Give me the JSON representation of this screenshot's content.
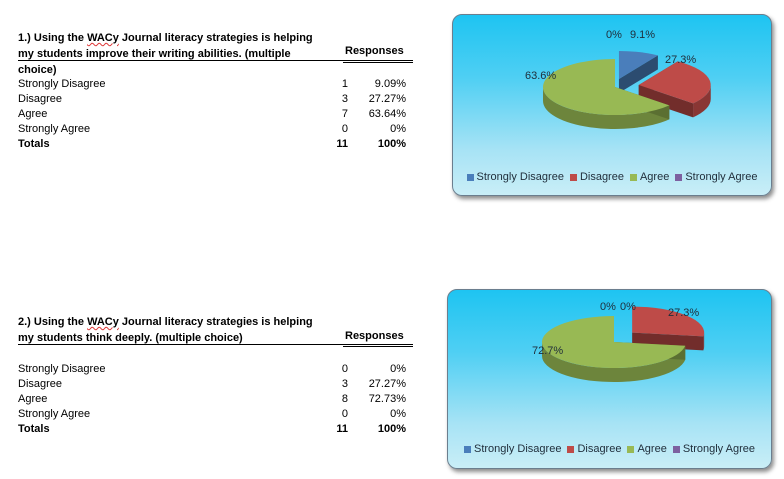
{
  "questions": [
    {
      "title_pre": "1.)  Using the ",
      "title_sq": "WACy",
      "title_post": " Journal literacy strategies is helping my students improve their writing abilities. (multiple choice)",
      "responses_header": "Responses",
      "rows": [
        {
          "label": "Strongly Disagree",
          "count": "1",
          "percent": "9.09%"
        },
        {
          "label": "Disagree",
          "count": "3",
          "percent": "27.27%"
        },
        {
          "label": "Agree",
          "count": "7",
          "percent": "63.64%"
        },
        {
          "label": "Strongly Agree",
          "count": "0",
          "percent": "0%"
        }
      ],
      "totals": {
        "label": "Totals",
        "count": "11",
        "percent": "100%"
      }
    },
    {
      "title_pre": "2.)  Using the ",
      "title_sq": "WACy",
      "title_post": " Journal literacy strategies is helping my students think deeply. (multiple choice)",
      "responses_header": "Responses",
      "rows": [
        {
          "label": "Strongly Disagree",
          "count": "0",
          "percent": "0%"
        },
        {
          "label": "Disagree",
          "count": "3",
          "percent": "27.27%"
        },
        {
          "label": "Agree",
          "count": "8",
          "percent": "72.73%"
        },
        {
          "label": "Strongly Agree",
          "count": "0",
          "percent": "0%"
        }
      ],
      "totals": {
        "label": "Totals",
        "count": "11",
        "percent": "100%"
      }
    }
  ],
  "chart_data": [
    {
      "type": "pie",
      "categories": [
        "Strongly Disagree",
        "Disagree",
        "Agree",
        "Strongly Agree"
      ],
      "values": [
        9.1,
        27.3,
        63.6,
        0
      ],
      "data_labels": [
        "9.1%",
        "27.3%",
        "63.6%",
        "0%"
      ],
      "colors": [
        "#4a7ebb",
        "#be4b48",
        "#98b954",
        "#7d60a0"
      ],
      "legend": "bottom",
      "style": "3d-exploded"
    },
    {
      "type": "pie",
      "categories": [
        "Strongly Disagree",
        "Disagree",
        "Agree",
        "Strongly Agree"
      ],
      "values": [
        0,
        27.3,
        72.7,
        0
      ],
      "data_labels": [
        "0%",
        "27.3%",
        "72.7%",
        "0%"
      ],
      "colors": [
        "#4a7ebb",
        "#be4b48",
        "#98b954",
        "#7d60a0"
      ],
      "legend": "bottom",
      "style": "3d-exploded"
    }
  ]
}
